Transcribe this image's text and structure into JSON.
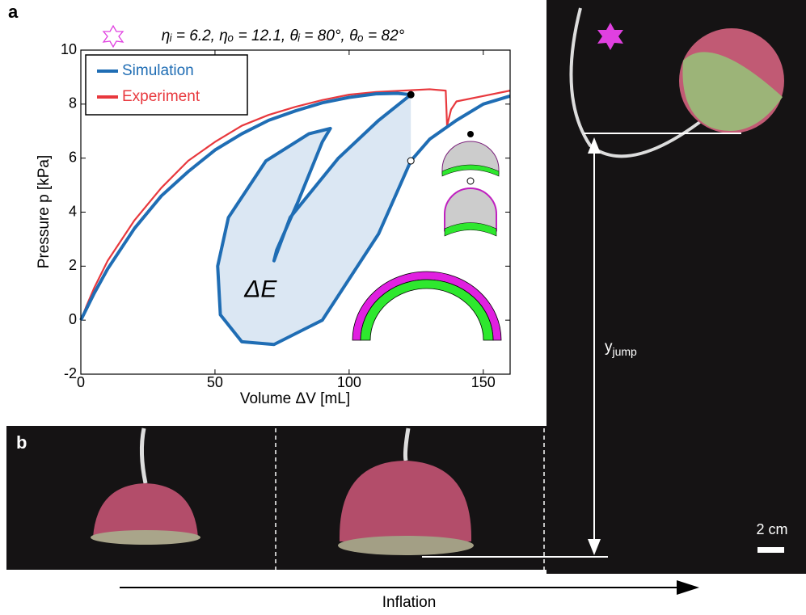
{
  "chart_data": {
    "type": "line",
    "title": "ηᵢ = 6.2, ηₒ = 12.1, θᵢ = 80°, θₒ = 82°",
    "x_label": "Volume ΔV [mL]",
    "y_label": "Pressure p [kPa]",
    "xlim": [
      0,
      160
    ],
    "ylim": [
      -2,
      10
    ],
    "xticks": [
      0,
      50,
      100,
      150
    ],
    "yticks": [
      -2,
      0,
      2,
      4,
      6,
      8,
      10
    ],
    "legend_position": "upper left",
    "grid": false,
    "series": [
      {
        "name": "Simulation",
        "color": "#1f6db4",
        "x": [
          0,
          5,
          10,
          20,
          30,
          40,
          50,
          60,
          70,
          80,
          90,
          100,
          110,
          118,
          123,
          111,
          96,
          78,
          72,
          73,
          81,
          90,
          93,
          85,
          69,
          55,
          51,
          52,
          60,
          72,
          90,
          111,
          123,
          130,
          140,
          150,
          160
        ],
        "values": [
          0,
          1.0,
          1.9,
          3.4,
          4.6,
          5.5,
          6.3,
          6.9,
          7.4,
          7.75,
          8.05,
          8.25,
          8.38,
          8.4,
          8.35,
          7.4,
          6.0,
          3.8,
          2.2,
          2.6,
          4.4,
          6.6,
          7.1,
          6.9,
          5.9,
          3.8,
          2.0,
          0.2,
          -0.8,
          -0.9,
          0.0,
          3.2,
          5.9,
          6.7,
          7.4,
          8.0,
          8.3
        ]
      },
      {
        "name": "Experiment",
        "color": "#e8383d",
        "x": [
          0,
          2,
          5,
          10,
          20,
          30,
          40,
          50,
          60,
          70,
          80,
          90,
          100,
          110,
          120,
          130,
          136,
          136.5,
          138,
          140,
          150,
          160
        ],
        "values": [
          0,
          0.5,
          1.2,
          2.2,
          3.7,
          4.9,
          5.9,
          6.6,
          7.2,
          7.6,
          7.9,
          8.15,
          8.35,
          8.45,
          8.5,
          8.55,
          8.5,
          7.2,
          7.8,
          8.1,
          8.3,
          8.5
        ]
      }
    ],
    "markers": {
      "x": [
        123,
        123
      ],
      "values": [
        8.35,
        5.9
      ]
    },
    "region_label": "ΔE"
  },
  "annotations": {
    "panel_a": "a",
    "panel_b": "b",
    "jump_main": "y",
    "jump_sub": "jump",
    "scale_bar": "2 cm",
    "arrow_label": "Inflation"
  }
}
